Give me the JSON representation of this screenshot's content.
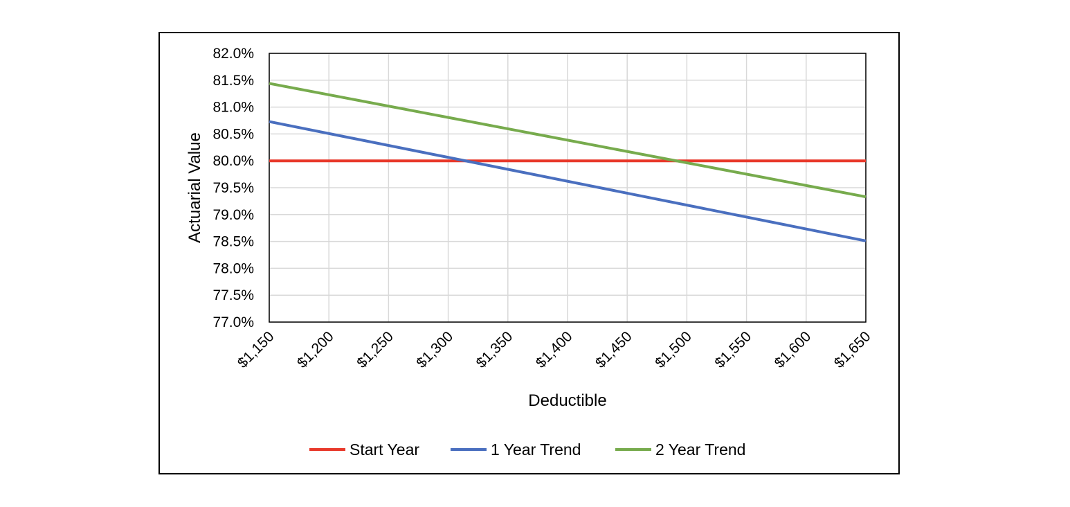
{
  "chart_data": {
    "type": "line",
    "title": "",
    "xlabel": "Deductible",
    "ylabel": "Actuarial Value",
    "x": [
      1150,
      1650
    ],
    "x_tick_labels": [
      "$1,150",
      "$1,200",
      "$1,250",
      "$1,300",
      "$1,350",
      "$1,400",
      "$1,450",
      "$1,500",
      "$1,550",
      "$1,600",
      "$1,650"
    ],
    "x_ticks": [
      1150,
      1200,
      1250,
      1300,
      1350,
      1400,
      1450,
      1500,
      1550,
      1600,
      1650
    ],
    "xlim": [
      1150,
      1650
    ],
    "y_tick_labels": [
      "77.0%",
      "77.5%",
      "78.0%",
      "78.5%",
      "79.0%",
      "79.5%",
      "80.0%",
      "80.5%",
      "81.0%",
      "81.5%",
      "82.0%"
    ],
    "y_ticks": [
      77.0,
      77.5,
      78.0,
      78.5,
      79.0,
      79.5,
      80.0,
      80.5,
      81.0,
      81.5,
      82.0
    ],
    "ylim": [
      77.0,
      82.0
    ],
    "grid": true,
    "legend_position": "bottom",
    "series": [
      {
        "name": "Start Year",
        "color": "#e8392b",
        "values": [
          80.0,
          80.0
        ]
      },
      {
        "name": "1 Year Trend",
        "color": "#4a6fbf",
        "values": [
          80.73,
          78.51
        ]
      },
      {
        "name": "2 Year Trend",
        "color": "#77ab4d",
        "values": [
          81.44,
          79.33
        ]
      }
    ]
  }
}
